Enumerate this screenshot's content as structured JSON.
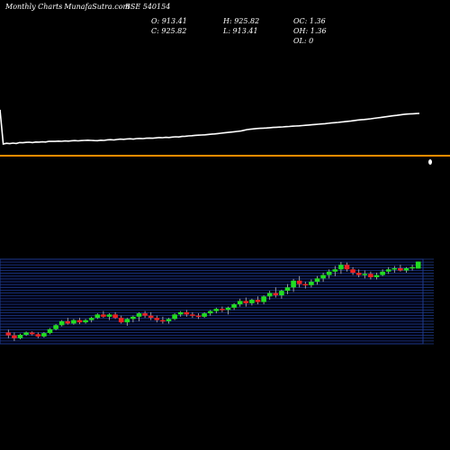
{
  "header": {
    "brand": "Monthly Charts",
    "site": "- MunafaSutra.com",
    "symbol": "BSE 540154",
    "open_label": "O: 913.41",
    "close_label": "C: 925.82",
    "high_label": "H: 925.82",
    "low_label": "L: 913.41",
    "oc_label": "OC: 1.36",
    "oh_label": "OH: 1.36",
    "ol_label": "OL: 0"
  },
  "colors": {
    "background": "#000000",
    "line": "#ffffff",
    "separator": "#ff8c00",
    "grid": "#1e3a8a",
    "up": "#22dd22",
    "down": "#ee2222"
  },
  "chart_data": [
    {
      "type": "line",
      "title": "",
      "ylabel": "",
      "xlabel": "",
      "values": [
        905,
        500,
        510,
        505,
        512,
        508,
        520,
        518,
        522,
        525,
        520,
        528,
        526,
        530,
        528,
        536,
        538,
        536,
        540,
        538,
        542,
        540,
        545,
        548,
        544,
        548,
        550,
        552,
        550,
        548,
        546,
        552,
        550,
        558,
        560,
        556,
        562,
        568,
        565,
        570,
        572,
        568,
        575,
        578,
        575,
        580,
        582,
        580,
        585,
        590,
        588,
        592,
        590,
        596,
        600,
        598,
        605,
        608,
        612,
        615,
        620,
        622,
        625,
        628,
        632,
        636,
        640,
        645,
        650,
        655,
        660,
        665,
        670,
        675,
        680,
        690,
        700,
        705,
        710,
        715,
        718,
        720,
        722,
        726,
        730,
        732,
        735,
        738,
        741,
        744,
        747,
        750,
        753,
        756,
        760,
        764,
        768,
        771,
        775,
        779,
        783,
        787,
        792,
        796,
        800,
        805,
        810,
        815,
        820,
        826,
        832,
        836,
        840,
        845,
        850,
        856,
        862,
        868,
        874,
        880,
        886,
        892,
        898,
        904,
        910,
        915,
        918,
        920,
        922,
        925
      ]
    },
    {
      "type": "candlestick",
      "title": "",
      "ylim": [
        780,
        930
      ],
      "grid": true,
      "candles": [
        [
          800,
          805,
          790,
          795
        ],
        [
          795,
          800,
          785,
          790
        ],
        [
          790,
          798,
          788,
          796
        ],
        [
          796,
          802,
          794,
          800
        ],
        [
          800,
          802,
          795,
          797
        ],
        [
          797,
          800,
          790,
          793
        ],
        [
          793,
          801,
          791,
          799
        ],
        [
          799,
          808,
          797,
          806
        ],
        [
          806,
          815,
          804,
          813
        ],
        [
          813,
          822,
          811,
          820
        ],
        [
          820,
          826,
          814,
          816
        ],
        [
          816,
          824,
          814,
          822
        ],
        [
          822,
          826,
          815,
          818
        ],
        [
          818,
          824,
          816,
          822
        ],
        [
          822,
          828,
          818,
          826
        ],
        [
          826,
          834,
          824,
          832
        ],
        [
          832,
          838,
          826,
          828
        ],
        [
          828,
          834,
          822,
          832
        ],
        [
          832,
          836,
          824,
          826
        ],
        [
          826,
          830,
          816,
          818
        ],
        [
          818,
          826,
          812,
          824
        ],
        [
          824,
          830,
          818,
          828
        ],
        [
          828,
          836,
          820,
          834
        ],
        [
          834,
          838,
          826,
          830
        ],
        [
          830,
          836,
          822,
          826
        ],
        [
          826,
          830,
          818,
          822
        ],
        [
          822,
          828,
          816,
          820
        ],
        [
          820,
          826,
          816,
          824
        ],
        [
          824,
          834,
          822,
          832
        ],
        [
          832,
          838,
          828,
          836
        ],
        [
          836,
          840,
          828,
          832
        ],
        [
          832,
          836,
          826,
          830
        ],
        [
          830,
          834,
          824,
          828
        ],
        [
          828,
          836,
          826,
          834
        ],
        [
          834,
          840,
          830,
          838
        ],
        [
          838,
          844,
          834,
          842
        ],
        [
          842,
          846,
          836,
          840
        ],
        [
          840,
          846,
          832,
          844
        ],
        [
          844,
          852,
          840,
          850
        ],
        [
          850,
          860,
          846,
          856
        ],
        [
          856,
          862,
          846,
          852
        ],
        [
          852,
          860,
          848,
          858
        ],
        [
          858,
          864,
          850,
          854
        ],
        [
          854,
          866,
          850,
          864
        ],
        [
          864,
          874,
          858,
          870
        ],
        [
          870,
          880,
          862,
          866
        ],
        [
          866,
          876,
          860,
          874
        ],
        [
          874,
          886,
          868,
          880
        ],
        [
          880,
          895,
          872,
          892
        ],
        [
          892,
          900,
          880,
          886
        ],
        [
          886,
          890,
          878,
          884
        ],
        [
          884,
          894,
          880,
          890
        ],
        [
          890,
          900,
          885,
          896
        ],
        [
          896,
          906,
          890,
          902
        ],
        [
          902,
          912,
          896,
          908
        ],
        [
          908,
          918,
          900,
          912
        ],
        [
          912,
          925,
          904,
          920
        ],
        [
          920,
          924,
          908,
          912
        ],
        [
          912,
          916,
          902,
          906
        ],
        [
          906,
          912,
          898,
          902
        ],
        [
          902,
          910,
          896,
          904
        ],
        [
          904,
          908,
          894,
          898
        ],
        [
          898,
          906,
          894,
          902
        ],
        [
          902,
          912,
          900,
          908
        ],
        [
          908,
          916,
          904,
          912
        ],
        [
          912,
          918,
          906,
          914
        ],
        [
          914,
          920,
          908,
          910
        ],
        [
          910,
          916,
          906,
          914
        ],
        [
          914,
          920,
          910,
          916
        ],
        [
          913.41,
          925.82,
          913.41,
          925.82
        ]
      ]
    }
  ]
}
